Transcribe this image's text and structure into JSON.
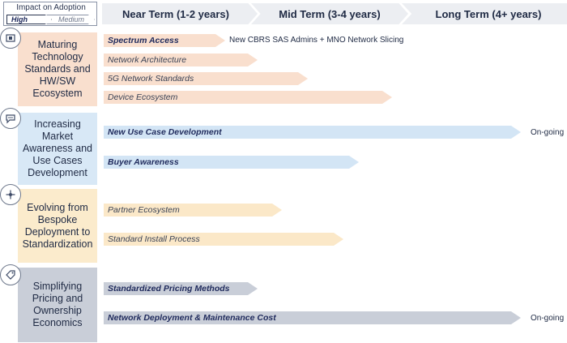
{
  "legend": {
    "title": "Impact on Adoption",
    "high": "High",
    "medium": "Medium"
  },
  "terms": [
    "Near Term (1-2 years)",
    "Mid Term (3-4 years)",
    "Long Term (4+ years)"
  ],
  "categories": [
    {
      "label": "Maturing Technology Standards and HW/SW Ecosystem",
      "icon": "chip-icon",
      "color": "#f9dfce",
      "items": [
        {
          "label": "Spectrum Access",
          "impact": "High",
          "note": "New CBRS SAS Admins + MNO Network Slicing"
        },
        {
          "label": "Network Architecture",
          "impact": "Medium"
        },
        {
          "label": "5G Network Standards",
          "impact": "Medium"
        },
        {
          "label": "Device Ecosystem",
          "impact": "Medium"
        }
      ]
    },
    {
      "label": "Increasing Market Awareness and Use Cases Development",
      "icon": "chat-icon",
      "color": "#d8e8f6",
      "items": [
        {
          "label": "New Use Case Development",
          "impact": "High",
          "note": "On-going"
        },
        {
          "label": "Buyer Awareness",
          "impact": "High"
        }
      ]
    },
    {
      "label": "Evolving from Bespoke Deployment to Standardization",
      "icon": "network-icon",
      "color": "#fbebcc",
      "items": [
        {
          "label": "Partner Ecosystem",
          "impact": "Medium"
        },
        {
          "label": "Standard Install Process",
          "impact": "Medium"
        }
      ]
    },
    {
      "label": "Simplifying Pricing and Ownership Economics",
      "icon": "tag-icon",
      "color": "#c9ced8",
      "items": [
        {
          "label": "Standardized Pricing Methods",
          "impact": "High"
        },
        {
          "label": "Network Deployment & Maintenance Cost",
          "impact": "High",
          "note": "On-going"
        }
      ]
    }
  ]
}
